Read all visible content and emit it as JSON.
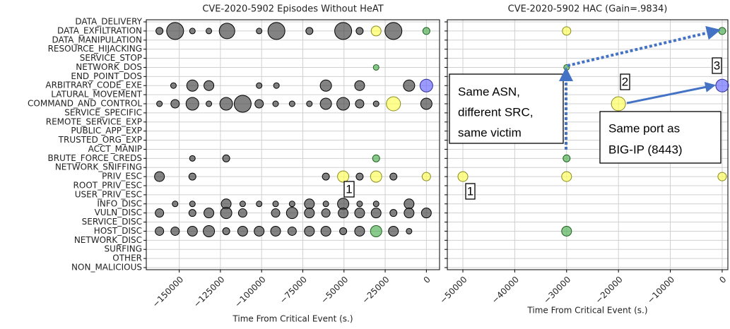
{
  "chart_data": [
    {
      "type": "scatter",
      "title": "CVE-2020-5902 Episodes Without HeAT",
      "xlabel": "Time From Critical Event (s.)",
      "categories": [
        "DATA_DELIVERY",
        "DATA_EXFILTRATION",
        "DATA_MANIPULATION",
        "RESOURCE_HIJACKING",
        "SERVICE_STOP",
        "NETWORK_DOS",
        "END_POINT_DOS",
        "ARBITRARY_CODE_EXE",
        "LATURAL_MOVEMENT",
        "COMMAND_AND_CONTROL",
        "SERVICE_SPECIFIC",
        "REMOTE_SERVICE_EXP",
        "PUBLIC_APP_EXP",
        "TRUSTED_ORG_EXP",
        "ACCT_MANIP",
        "BRUTE_FORCE_CREDS",
        "NETWORK_SNIFFING",
        "PRIV_ESC",
        "ROOT_PRIV_ESC",
        "USER_PRIV_ESC",
        "INFO_DISC",
        "VULN_DISC",
        "SERVICE_DISC",
        "HOST_DISC",
        "NETWORK_DISC",
        "SURFING",
        "OTHER",
        "NON_MALICIOUS"
      ],
      "xlim": [
        -170000,
        8000
      ],
      "xticks": [
        {
          "value": -150000,
          "label": "−150000"
        },
        {
          "value": -125000,
          "label": "−125000"
        },
        {
          "value": -100000,
          "label": "−100000"
        },
        {
          "value": -75000,
          "label": "−75000"
        },
        {
          "value": -50000,
          "label": "−50000"
        },
        {
          "value": -25000,
          "label": "−25000"
        },
        0
      ],
      "grid": true,
      "series": [
        {
          "color": "#404040",
          "edge": "#000000",
          "x": [
            -162000,
            -152500,
            -142000,
            -132000,
            -121000,
            -101500,
            -91000,
            -71000,
            -50500,
            -40500,
            -20000,
            -153500,
            -142000,
            -132000,
            -101500,
            -91000,
            -61000,
            -40500,
            -10500,
            -162000,
            -152500,
            -142000,
            -132000,
            -121500,
            -111500,
            -101500,
            -91500,
            -81500,
            -71000,
            -61000,
            -50500,
            -40500,
            -30500,
            0,
            -142000,
            -121500,
            -162000,
            -142000,
            -61000,
            -40500,
            -20000,
            -152500,
            -142000,
            -121500,
            -111500,
            -101500,
            -91500,
            -81500,
            -71000,
            -61000,
            -50500,
            -40500,
            -30500,
            -10500,
            -162000,
            -142000,
            -132000,
            -121500,
            -111500,
            -91500,
            -81500,
            -71000,
            -61000,
            -50500,
            -40500,
            -30500,
            -20000,
            -10500,
            0,
            -162000,
            -152500,
            -142000,
            -132000,
            -121500,
            -111500,
            -101500,
            -91500,
            -81500,
            -71000,
            -61000,
            -50500,
            -40500,
            -20000,
            -10500
          ],
          "y": [
            "DATA_EXFILTRATION",
            "DATA_EXFILTRATION",
            "DATA_EXFILTRATION",
            "DATA_EXFILTRATION",
            "DATA_EXFILTRATION",
            "DATA_EXFILTRATION",
            "DATA_EXFILTRATION",
            "DATA_EXFILTRATION",
            "DATA_EXFILTRATION",
            "DATA_EXFILTRATION",
            "DATA_EXFILTRATION",
            "ARBITRARY_CODE_EXE",
            "ARBITRARY_CODE_EXE",
            "ARBITRARY_CODE_EXE",
            "ARBITRARY_CODE_EXE",
            "ARBITRARY_CODE_EXE",
            "ARBITRARY_CODE_EXE",
            "ARBITRARY_CODE_EXE",
            "ARBITRARY_CODE_EXE",
            "COMMAND_AND_CONTROL",
            "COMMAND_AND_CONTROL",
            "COMMAND_AND_CONTROL",
            "COMMAND_AND_CONTROL",
            "COMMAND_AND_CONTROL",
            "COMMAND_AND_CONTROL",
            "COMMAND_AND_CONTROL",
            "COMMAND_AND_CONTROL",
            "COMMAND_AND_CONTROL",
            "COMMAND_AND_CONTROL",
            "COMMAND_AND_CONTROL",
            "COMMAND_AND_CONTROL",
            "COMMAND_AND_CONTROL",
            "COMMAND_AND_CONTROL",
            "COMMAND_AND_CONTROL",
            "BRUTE_FORCE_CREDS",
            "BRUTE_FORCE_CREDS",
            "PRIV_ESC",
            "PRIV_ESC",
            "PRIV_ESC",
            "PRIV_ESC",
            "PRIV_ESC",
            "INFO_DISC",
            "INFO_DISC",
            "INFO_DISC",
            "INFO_DISC",
            "INFO_DISC",
            "INFO_DISC",
            "INFO_DISC",
            "INFO_DISC",
            "INFO_DISC",
            "INFO_DISC",
            "INFO_DISC",
            "INFO_DISC",
            "INFO_DISC",
            "VULN_DISC",
            "VULN_DISC",
            "VULN_DISC",
            "VULN_DISC",
            "VULN_DISC",
            "VULN_DISC",
            "VULN_DISC",
            "VULN_DISC",
            "VULN_DISC",
            "VULN_DISC",
            "VULN_DISC",
            "VULN_DISC",
            "VULN_DISC",
            "VULN_DISC",
            "VULN_DISC",
            "HOST_DISC",
            "HOST_DISC",
            "HOST_DISC",
            "HOST_DISC",
            "HOST_DISC",
            "HOST_DISC",
            "HOST_DISC",
            "HOST_DISC",
            "HOST_DISC",
            "HOST_DISC",
            "HOST_DISC",
            "HOST_DISC",
            "HOST_DISC",
            "HOST_DISC",
            "HOST_DISC"
          ],
          "sizes": [
            5,
            12,
            4,
            4,
            11,
            4,
            12,
            5,
            12,
            5,
            12,
            4,
            8,
            7,
            4,
            4,
            8,
            7,
            8,
            4,
            6,
            9,
            4,
            9,
            12,
            6,
            4,
            4,
            4,
            8,
            9,
            6,
            4,
            8,
            4,
            5,
            7,
            5,
            5,
            5,
            5,
            4,
            4,
            7,
            4,
            4,
            4,
            4,
            7,
            4,
            8,
            4,
            4,
            7,
            6,
            5,
            7,
            8,
            6,
            6,
            8,
            7,
            6,
            7,
            7,
            7,
            5,
            7,
            7,
            6,
            6,
            7,
            8,
            5,
            7,
            7,
            7,
            6,
            7,
            7,
            5,
            7,
            7,
            4
          ]
        },
        {
          "color": "#ffff55",
          "edge": "#8a8a20",
          "x": [
            -30500,
            -20000,
            -50500,
            -30500,
            0
          ],
          "y": [
            "DATA_EXFILTRATION",
            "COMMAND_AND_CONTROL",
            "PRIV_ESC",
            "PRIV_ESC",
            "PRIV_ESC"
          ],
          "sizes": [
            7,
            10,
            8,
            8,
            6
          ]
        },
        {
          "color": "#4caf50",
          "edge": "#1f5f1f",
          "x": [
            0,
            -30500,
            -30500,
            -30500
          ],
          "y": [
            "DATA_EXFILTRATION",
            "NETWORK_DOS",
            "BRUTE_FORCE_CREDS",
            "HOST_DISC"
          ],
          "sizes": [
            5,
            4,
            5,
            8
          ]
        },
        {
          "color": "#6666ff",
          "edge": "#2a2a99",
          "x": [
            0
          ],
          "y": [
            "ARBITRARY_CODE_EXE"
          ],
          "sizes": [
            9
          ]
        }
      ],
      "annotations": [
        "1"
      ]
    },
    {
      "type": "scatter",
      "title": "CVE-2020-5902 HAC (Gain=.9834)",
      "xlabel": "Time From Critical Event (s.)",
      "xlim": [
        -53000,
        1100
      ],
      "xticks": [
        {
          "value": -50000,
          "label": "−50000"
        },
        {
          "value": -40000,
          "label": "−40000"
        },
        {
          "value": -30000,
          "label": "−30000"
        },
        {
          "value": -20000,
          "label": "−20000"
        },
        {
          "value": -10000,
          "label": "−10000"
        },
        0
      ],
      "grid": true,
      "series": [
        {
          "color": "#ffff55",
          "edge": "#8a8a20",
          "x": [
            -30000,
            -20000,
            -50000,
            -30000,
            0
          ],
          "y": [
            "DATA_EXFILTRATION",
            "COMMAND_AND_CONTROL",
            "PRIV_ESC",
            "PRIV_ESC",
            "PRIV_ESC"
          ],
          "sizes": [
            6,
            10,
            7,
            7,
            6
          ]
        },
        {
          "color": "#4caf50",
          "edge": "#1f5f1f",
          "x": [
            0,
            -30000,
            -30000,
            -30000
          ],
          "y": [
            "DATA_EXFILTRATION",
            "NETWORK_DOS",
            "BRUTE_FORCE_CREDS",
            "HOST_DISC"
          ],
          "sizes": [
            5,
            4,
            5,
            7
          ]
        },
        {
          "color": "#6666ff",
          "edge": "#2a2a99",
          "x": [
            0
          ],
          "y": [
            "ARBITRARY_CODE_EXE"
          ],
          "sizes": [
            9
          ]
        }
      ],
      "annotations": [
        [
          "Same ASN,",
          "different SRC,",
          "same victim"
        ],
        [
          "Same port as",
          "BIG-IP (8443)"
        ],
        "1",
        "2",
        "3"
      ]
    }
  ]
}
